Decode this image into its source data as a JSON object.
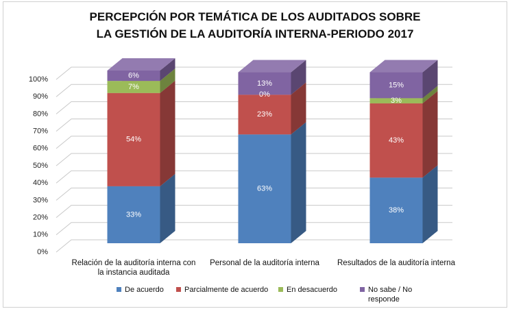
{
  "chart_data": {
    "type": "bar3d_stacked",
    "title": "PERCEPCIÓN POR TEMÁTICA DE LOS AUDITADOS SOBRE LA GESTIÓN DE LA AUDITORÍA INTERNA-PERIODO 2017",
    "categories": [
      "Relación de la auditoría interna con la instancia auditada",
      "Personal de la auditoría interna",
      "Resultados de la auditoría interna"
    ],
    "series": [
      {
        "name": "De acuerdo",
        "color": "#4f81bd",
        "values": [
          33,
          63,
          38
        ],
        "value_labels": [
          "33%",
          "63%",
          "38%"
        ]
      },
      {
        "name": "Parcialmente de acuerdo",
        "color": "#c0504d",
        "values": [
          54,
          23,
          43
        ],
        "value_labels": [
          "54%",
          "23%",
          "43%"
        ]
      },
      {
        "name": "En desacuerdo",
        "color": "#9bbb59",
        "values": [
          7,
          0,
          3
        ],
        "value_labels": [
          "7%",
          "0%",
          "3%"
        ]
      },
      {
        "name": "No sabe / No responde",
        "color": "#8064a2",
        "values": [
          6,
          13,
          15
        ],
        "value_labels": [
          "6%",
          "13%",
          "15%"
        ]
      }
    ],
    "ylim": [
      0,
      100
    ],
    "yticks": [
      {
        "value": 0,
        "label": "0%"
      },
      {
        "value": 10,
        "label": "10%"
      },
      {
        "value": 20,
        "label": "20%"
      },
      {
        "value": 30,
        "label": "30%"
      },
      {
        "value": 40,
        "label": "40%"
      },
      {
        "value": 50,
        "label": "50%"
      },
      {
        "value": 60,
        "label": "60%"
      },
      {
        "value": 70,
        "label": "70%"
      },
      {
        "value": 80,
        "label": "80%"
      },
      {
        "value": 90,
        "label": "90%"
      },
      {
        "value": 100,
        "label": "100%"
      }
    ],
    "grid": true,
    "legend": "bottom"
  }
}
